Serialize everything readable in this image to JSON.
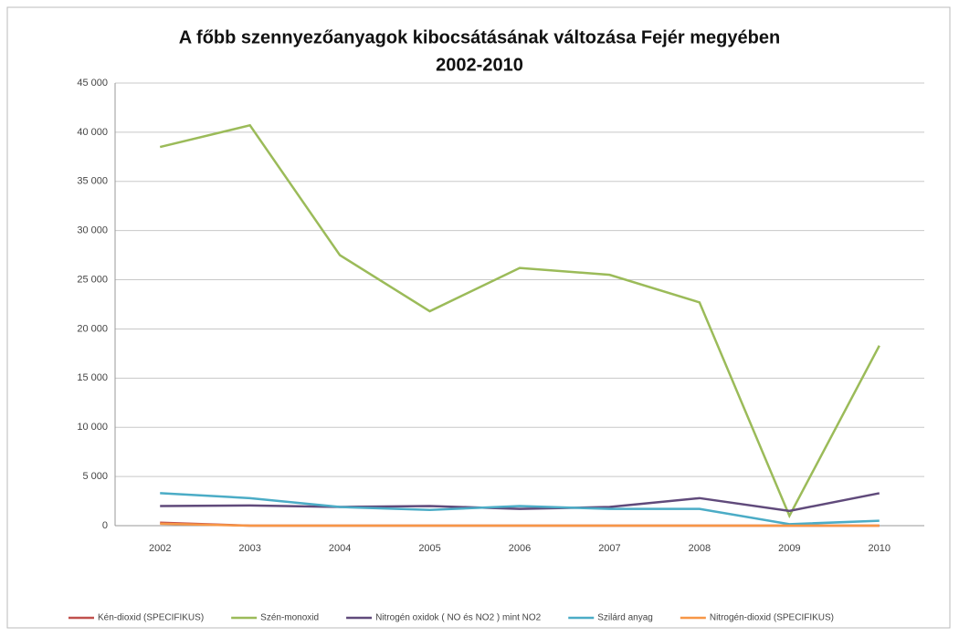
{
  "chart_data": {
    "type": "line",
    "title": "A főbb szennyezőanyagok kibocsátásának változása Fejér megyében",
    "subtitle": "2002-2010",
    "categories": [
      "2002",
      "2003",
      "2004",
      "2005",
      "2006",
      "2007",
      "2008",
      "2009",
      "2010"
    ],
    "series": [
      {
        "name": "Kén-dioxid (SPECIFIKUS)",
        "color": "#c0504d",
        "values": [
          300,
          0,
          0,
          0,
          0,
          0,
          0,
          0,
          0
        ]
      },
      {
        "name": "Szén-monoxid",
        "color": "#9bbb59",
        "values": [
          38500,
          40700,
          27500,
          21800,
          26200,
          25500,
          22700,
          1000,
          18300
        ]
      },
      {
        "name": "Nitrogén oxidok ( NO és NO2 ) mint NO2",
        "color": "#604a7b",
        "values": [
          2000,
          2050,
          1900,
          2000,
          1700,
          1900,
          2800,
          1500,
          3300
        ]
      },
      {
        "name": "Szilárd anyag",
        "color": "#4bacc6",
        "values": [
          3300,
          2800,
          1900,
          1600,
          2000,
          1700,
          1700,
          150,
          500
        ]
      },
      {
        "name": "Nitrogén-dioxid (SPECIFIKUS)",
        "color": "#f79646",
        "values": [
          200,
          0,
          0,
          0,
          0,
          0,
          0,
          0,
          0
        ]
      }
    ],
    "ylim": [
      0,
      45000
    ],
    "yticks": [
      0,
      {
        "value": 5000,
        "label": "5 000"
      },
      {
        "value": 10000,
        "label": "10 000"
      },
      {
        "value": 15000,
        "label": "15 000"
      },
      {
        "value": 20000,
        "label": "20 000"
      },
      {
        "value": 25000,
        "label": "25 000"
      },
      {
        "value": 30000,
        "label": "30 000"
      },
      {
        "value": 35000,
        "label": "35 000"
      },
      {
        "value": 40000,
        "label": "40 000"
      },
      {
        "value": 45000,
        "label": "45 000"
      }
    ],
    "grid": true,
    "legend": "bottom"
  }
}
